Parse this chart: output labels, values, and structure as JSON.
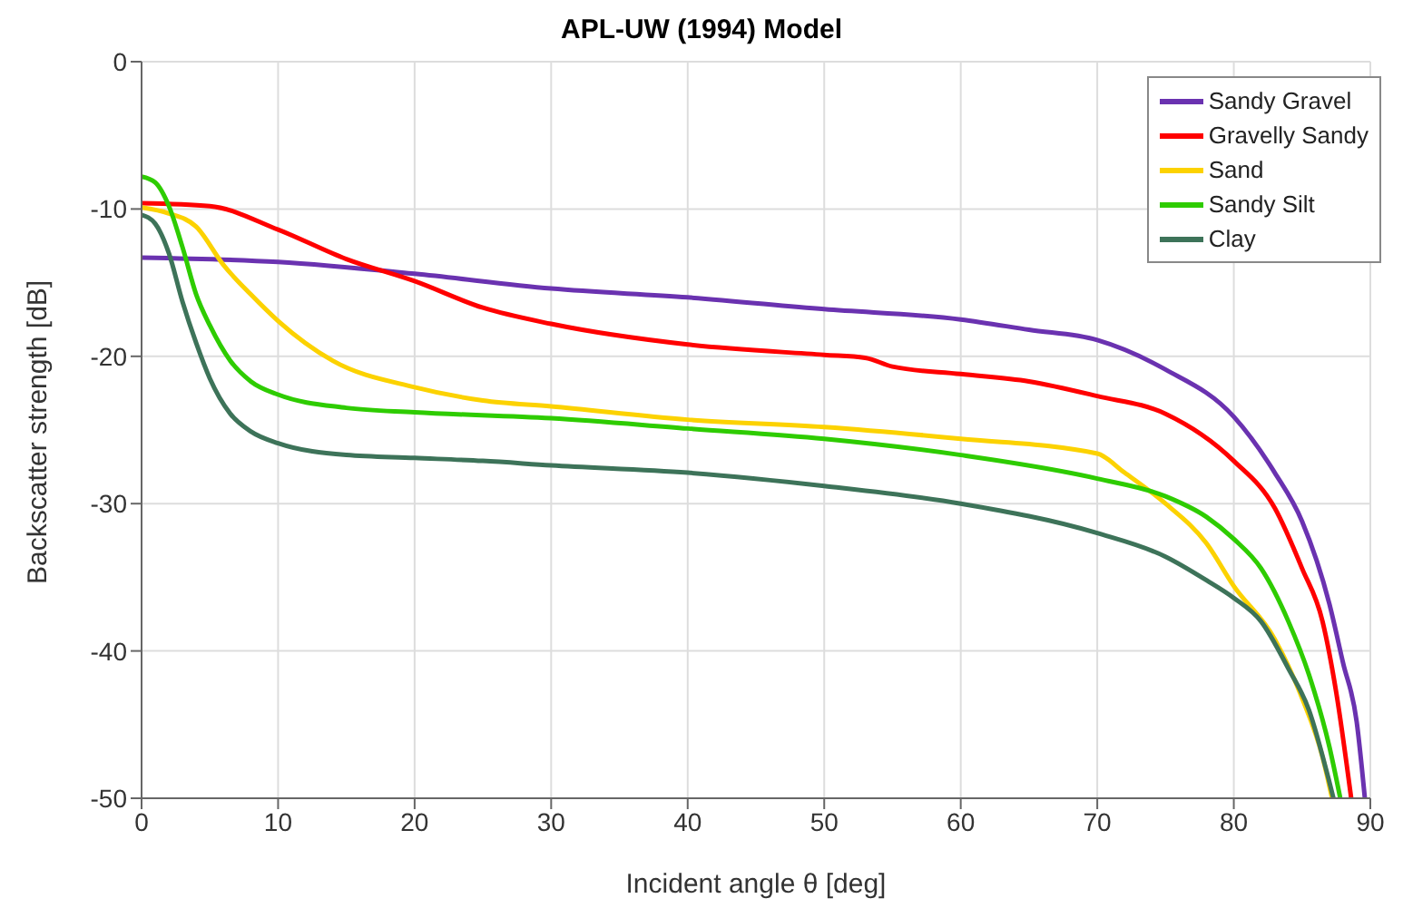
{
  "chart_data": {
    "type": "line",
    "title": "APL-UW (1994) Model",
    "xlabel": "Incident angle θ [deg]",
    "ylabel": "Backscatter strength [dB]",
    "xlim": [
      0,
      90
    ],
    "xticks": [
      0,
      10,
      20,
      30,
      40,
      50,
      60,
      70,
      80,
      90
    ],
    "ylim": [
      -50,
      0
    ],
    "yticks": [
      -50,
      -40,
      -30,
      -20,
      -10,
      0
    ],
    "grid": true,
    "legend": "top right",
    "marker": "none",
    "line_style": "solid",
    "series": [
      {
        "name": "Sandy Gravel",
        "color": "#6a32b0",
        "x": [
          0,
          10,
          20,
          30,
          40,
          50,
          60,
          65,
          70,
          75,
          80,
          83,
          85,
          87,
          88,
          89,
          89.6
        ],
        "values": [
          -13.3,
          -13.6,
          -14.4,
          -15.4,
          -16,
          -16.8,
          -17.5,
          -18.2,
          -18.9,
          -20.9,
          -24.1,
          -27.9,
          -31.2,
          -36.8,
          -40.8,
          -44.8,
          -50
        ]
      },
      {
        "name": "Gravelly Sandy",
        "color": "#ff0000",
        "x": [
          0,
          5,
          10,
          15,
          20,
          25,
          30,
          40,
          50,
          53,
          55,
          60,
          65,
          70,
          75,
          80,
          83,
          85,
          86.5,
          87.5,
          88.6
        ],
        "values": [
          -9.6,
          -9.8,
          -11.4,
          -13.4,
          -14.9,
          -16.7,
          -17.8,
          -19.2,
          -19.9,
          -20.1,
          -20.7,
          -21.2,
          -21.7,
          -22.7,
          -23.9,
          -27.1,
          -30.3,
          -34.4,
          -38,
          -42.8,
          -50
        ]
      },
      {
        "name": "Sand",
        "color": "#fcd200",
        "x": [
          0,
          2,
          4,
          6,
          8,
          10,
          14,
          20,
          25,
          30,
          40,
          50,
          60,
          70,
          72,
          75,
          78,
          80,
          83,
          85,
          86.5,
          87.2
        ],
        "values": [
          -9.9,
          -10.3,
          -11.2,
          -13.8,
          -15.8,
          -17.6,
          -20.3,
          -22.1,
          -23,
          -23.4,
          -24.3,
          -24.8,
          -25.6,
          -26.6,
          -27.9,
          -30,
          -32.7,
          -35.6,
          -39.2,
          -43.2,
          -47.2,
          -50
        ]
      },
      {
        "name": "Sandy Silt",
        "color": "#2ecc00",
        "x": [
          0,
          1,
          2,
          3,
          4,
          5,
          6.5,
          8,
          10,
          15,
          20,
          30,
          40,
          50,
          60,
          70,
          75,
          78,
          80,
          82,
          84,
          85.5,
          87,
          87.8
        ],
        "values": [
          -7.8,
          -8.2,
          -9.8,
          -12.6,
          -15.8,
          -17.9,
          -20.3,
          -21.7,
          -22.6,
          -23.5,
          -23.8,
          -24.2,
          -24.9,
          -25.6,
          -26.7,
          -28.3,
          -29.5,
          -30.9,
          -32.4,
          -34.4,
          -38,
          -41.6,
          -46.5,
          -50
        ]
      },
      {
        "name": "Clay",
        "color": "#3d7359",
        "x": [
          0,
          1,
          2,
          3,
          4,
          5,
          6.5,
          8,
          10,
          15,
          20,
          25,
          30,
          40,
          50,
          60,
          70,
          75,
          78,
          80,
          82,
          84,
          85.5,
          87,
          87.3
        ],
        "values": [
          -10.4,
          -11,
          -13,
          -16.3,
          -19.1,
          -21.5,
          -23.9,
          -25.1,
          -25.9,
          -26.7,
          -26.9,
          -27.1,
          -27.4,
          -27.9,
          -28.8,
          -30,
          -32,
          -33.6,
          -35.2,
          -36.4,
          -38,
          -41.2,
          -44,
          -48.9,
          -50
        ]
      }
    ]
  }
}
